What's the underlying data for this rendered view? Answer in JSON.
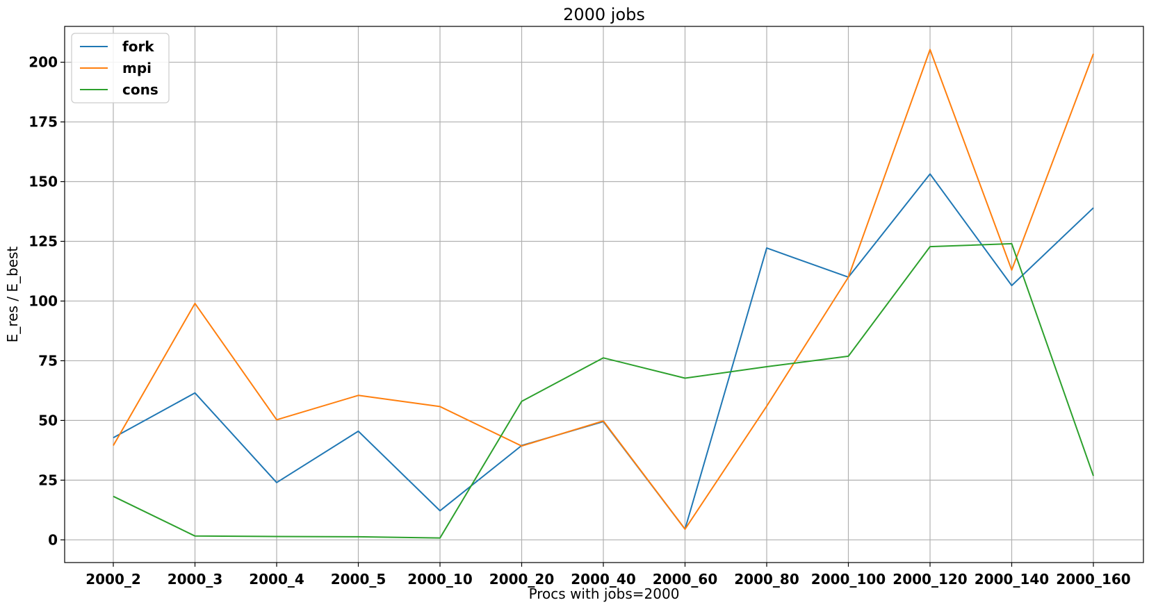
{
  "chart_data": {
    "type": "line",
    "title": "2000 jobs",
    "xlabel": "Procs with jobs=2000",
    "ylabel": "E_res / E_best",
    "categories": [
      "2000_2",
      "2000_3",
      "2000_4",
      "2000_5",
      "2000_10",
      "2000_20",
      "2000_40",
      "2000_60",
      "2000_80",
      "2000_100",
      "2000_120",
      "2000_140",
      "2000_160"
    ],
    "ylim": [
      -9.5,
      215
    ],
    "yticks": [
      0,
      25,
      50,
      75,
      100,
      125,
      150,
      175,
      200
    ],
    "grid": true,
    "legend_position": "top-left",
    "series": [
      {
        "name": "fork",
        "color": "#1f77b4",
        "values": [
          42.8,
          61.5,
          24,
          45.5,
          12.2,
          39.5,
          49.5,
          4.5,
          122.2,
          110,
          153.2,
          106.5,
          139
        ]
      },
      {
        "name": "mpi",
        "color": "#ff7f0e",
        "values": [
          39.5,
          99,
          50.3,
          60.5,
          55.8,
          39.3,
          49.8,
          4.5,
          56,
          110,
          205.3,
          113,
          203.5
        ]
      },
      {
        "name": "cons",
        "color": "#2ca02c",
        "values": [
          18.2,
          1.6,
          1.4,
          1.3,
          0.8,
          58,
          76.2,
          67.7,
          72.5,
          76.9,
          122.8,
          124,
          26.8
        ]
      }
    ]
  }
}
